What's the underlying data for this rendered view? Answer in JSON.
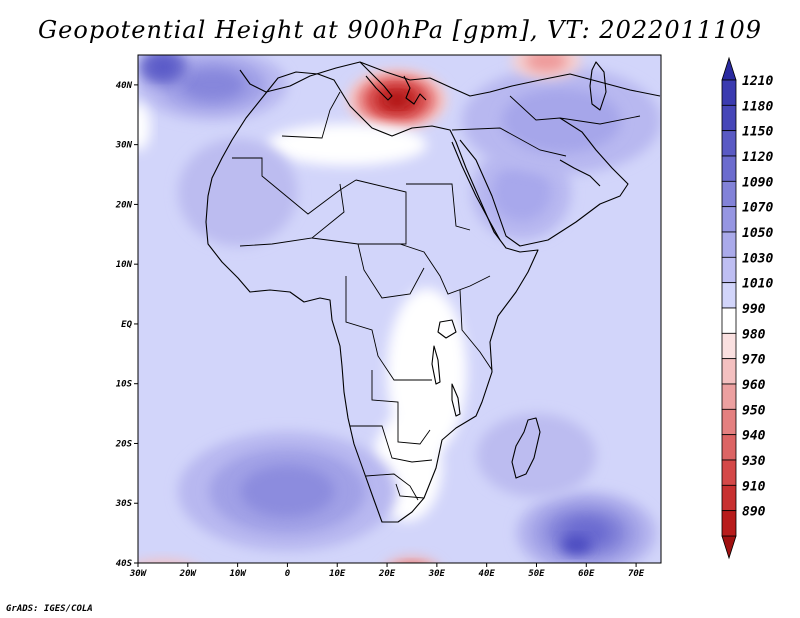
{
  "title": "Geopotential Height at 900hPa [gpm], VT: 2022011109",
  "credit": "GrADS: IGES/COLA",
  "map": {
    "lon_range": [
      -30,
      75
    ],
    "lat_range": [
      -40,
      45
    ],
    "lon_ticks": [
      {
        "value": -30,
        "label": "30W"
      },
      {
        "value": -20,
        "label": "20W"
      },
      {
        "value": -10,
        "label": "10W"
      },
      {
        "value": 0,
        "label": "0"
      },
      {
        "value": 10,
        "label": "10E"
      },
      {
        "value": 20,
        "label": "20E"
      },
      {
        "value": 30,
        "label": "30E"
      },
      {
        "value": 40,
        "label": "40E"
      },
      {
        "value": 50,
        "label": "50E"
      },
      {
        "value": 60,
        "label": "60E"
      },
      {
        "value": 70,
        "label": "70E"
      }
    ],
    "lat_ticks": [
      {
        "value": 40,
        "label": "40N"
      },
      {
        "value": 30,
        "label": "30N"
      },
      {
        "value": 20,
        "label": "20N"
      },
      {
        "value": 10,
        "label": "10N"
      },
      {
        "value": 0,
        "label": "EQ"
      },
      {
        "value": -10,
        "label": "10S"
      },
      {
        "value": -20,
        "label": "20S"
      },
      {
        "value": -30,
        "label": "30S"
      },
      {
        "value": -40,
        "label": "40S"
      }
    ],
    "background_color": "#d2d5fa",
    "features": [
      {
        "name": "mediterranean-high",
        "lon": 22,
        "lat": 37.5,
        "rlon": 10,
        "rlat": 5,
        "levels": [
          "#f6cfcf",
          "#ee9a9a",
          "#e06060",
          "#d04040",
          "#c02828",
          "#b01818"
        ]
      },
      {
        "name": "sahara-white-band",
        "lon": 12,
        "lat": 30,
        "rlon": 16,
        "rlat": 3.5,
        "levels": [
          "#ffffff"
        ]
      },
      {
        "name": "east-africa-white",
        "lon": 28,
        "lat": -8,
        "rlon": 8,
        "rlat": 14,
        "levels": [
          "#ffffff"
        ]
      },
      {
        "name": "southern-africa-white",
        "lon": 24,
        "lat": -24,
        "rlon": 7,
        "rlat": 9,
        "levels": [
          "#ffffff"
        ]
      },
      {
        "name": "arabia-high",
        "lon": 47,
        "lat": 22,
        "rlon": 10,
        "rlat": 8,
        "levels": [
          "#b8b8f0",
          "#a8a8ec"
        ]
      },
      {
        "name": "middle-east-high",
        "lon": 55,
        "lat": 34,
        "rlon": 20,
        "rlat": 9,
        "levels": [
          "#b8b8f0",
          "#a6a6ea"
        ]
      },
      {
        "name": "north-atlantic-high",
        "lon": -15,
        "lat": 40,
        "rlon": 15,
        "rlat": 6,
        "levels": [
          "#b8b8f0",
          "#9f9fe6",
          "#8686dc"
        ]
      },
      {
        "name": "iberia-high",
        "lon": -25,
        "lat": 43,
        "rlon": 5,
        "rlat": 3,
        "levels": [
          "#7272d0",
          "#5a5ac8"
        ]
      },
      {
        "name": "west-africa-high",
        "lon": -10,
        "lat": 22,
        "rlon": 12,
        "rlat": 9,
        "levels": [
          "#bcbcf0"
        ]
      },
      {
        "name": "south-atlantic-high",
        "lon": 0,
        "lat": -28,
        "rlon": 22,
        "rlat": 10,
        "levels": [
          "#b8b8f0",
          "#a0a0e6",
          "#8c8cde"
        ]
      },
      {
        "name": "south-indian-high",
        "lon": 60,
        "lat": -35,
        "rlon": 14,
        "rlat": 7,
        "levels": [
          "#b4b4ee",
          "#9c9ce4",
          "#8080d8",
          "#6a6ad0"
        ]
      },
      {
        "name": "mascarene-core",
        "lon": 58,
        "lat": -37,
        "rlon": 3,
        "rlat": 1.5,
        "levels": [
          "#4a4ac0"
        ]
      },
      {
        "name": "south-indian-arm",
        "lon": 50,
        "lat": -22,
        "rlon": 12,
        "rlat": 7,
        "levels": [
          "#bcbcf0"
        ]
      },
      {
        "name": "agulhas-low",
        "lon": 25,
        "lat": -42,
        "rlon": 6,
        "rlat": 3,
        "levels": [
          "#f0b0b0",
          "#e07070"
        ]
      },
      {
        "name": "sw-low",
        "lon": -25,
        "lat": -42,
        "rlon": 8,
        "rlat": 2.5,
        "levels": [
          "#f4c0c0"
        ]
      },
      {
        "name": "levant-low",
        "lon": 52,
        "lat": 44,
        "rlon": 7,
        "rlat": 3,
        "levels": [
          "#f6cfcf",
          "#ee9a9a"
        ]
      },
      {
        "name": "atlantic-white",
        "lon": -30,
        "lat": 33,
        "rlon": 2.5,
        "rlat": 4,
        "levels": [
          "#ffffff"
        ]
      }
    ]
  },
  "colorbar": {
    "levels": [
      {
        "label": "1210",
        "color": "#3b3bb0"
      },
      {
        "label": "1180",
        "color": "#4646b8"
      },
      {
        "label": "1150",
        "color": "#5a5ac4"
      },
      {
        "label": "1120",
        "color": "#6c6cce"
      },
      {
        "label": "1090",
        "color": "#8282d8"
      },
      {
        "label": "1070",
        "color": "#9696e2"
      },
      {
        "label": "1050",
        "color": "#aaaaea"
      },
      {
        "label": "1030",
        "color": "#bebef2"
      },
      {
        "label": "1010",
        "color": "#d2d5fa"
      },
      {
        "label": "990",
        "color": "#ffffff"
      },
      {
        "label": "980",
        "color": "#fae0e0"
      },
      {
        "label": "970",
        "color": "#f4c0c0"
      },
      {
        "label": "960",
        "color": "#eca0a0"
      },
      {
        "label": "950",
        "color": "#e48080"
      },
      {
        "label": "940",
        "color": "#dc6464"
      },
      {
        "label": "930",
        "color": "#d44848"
      },
      {
        "label": "910",
        "color": "#c83030"
      },
      {
        "label": "890",
        "color": "#b81c1c"
      }
    ],
    "top_color": "#2a2aa0",
    "bottom_color": "#a01010"
  }
}
